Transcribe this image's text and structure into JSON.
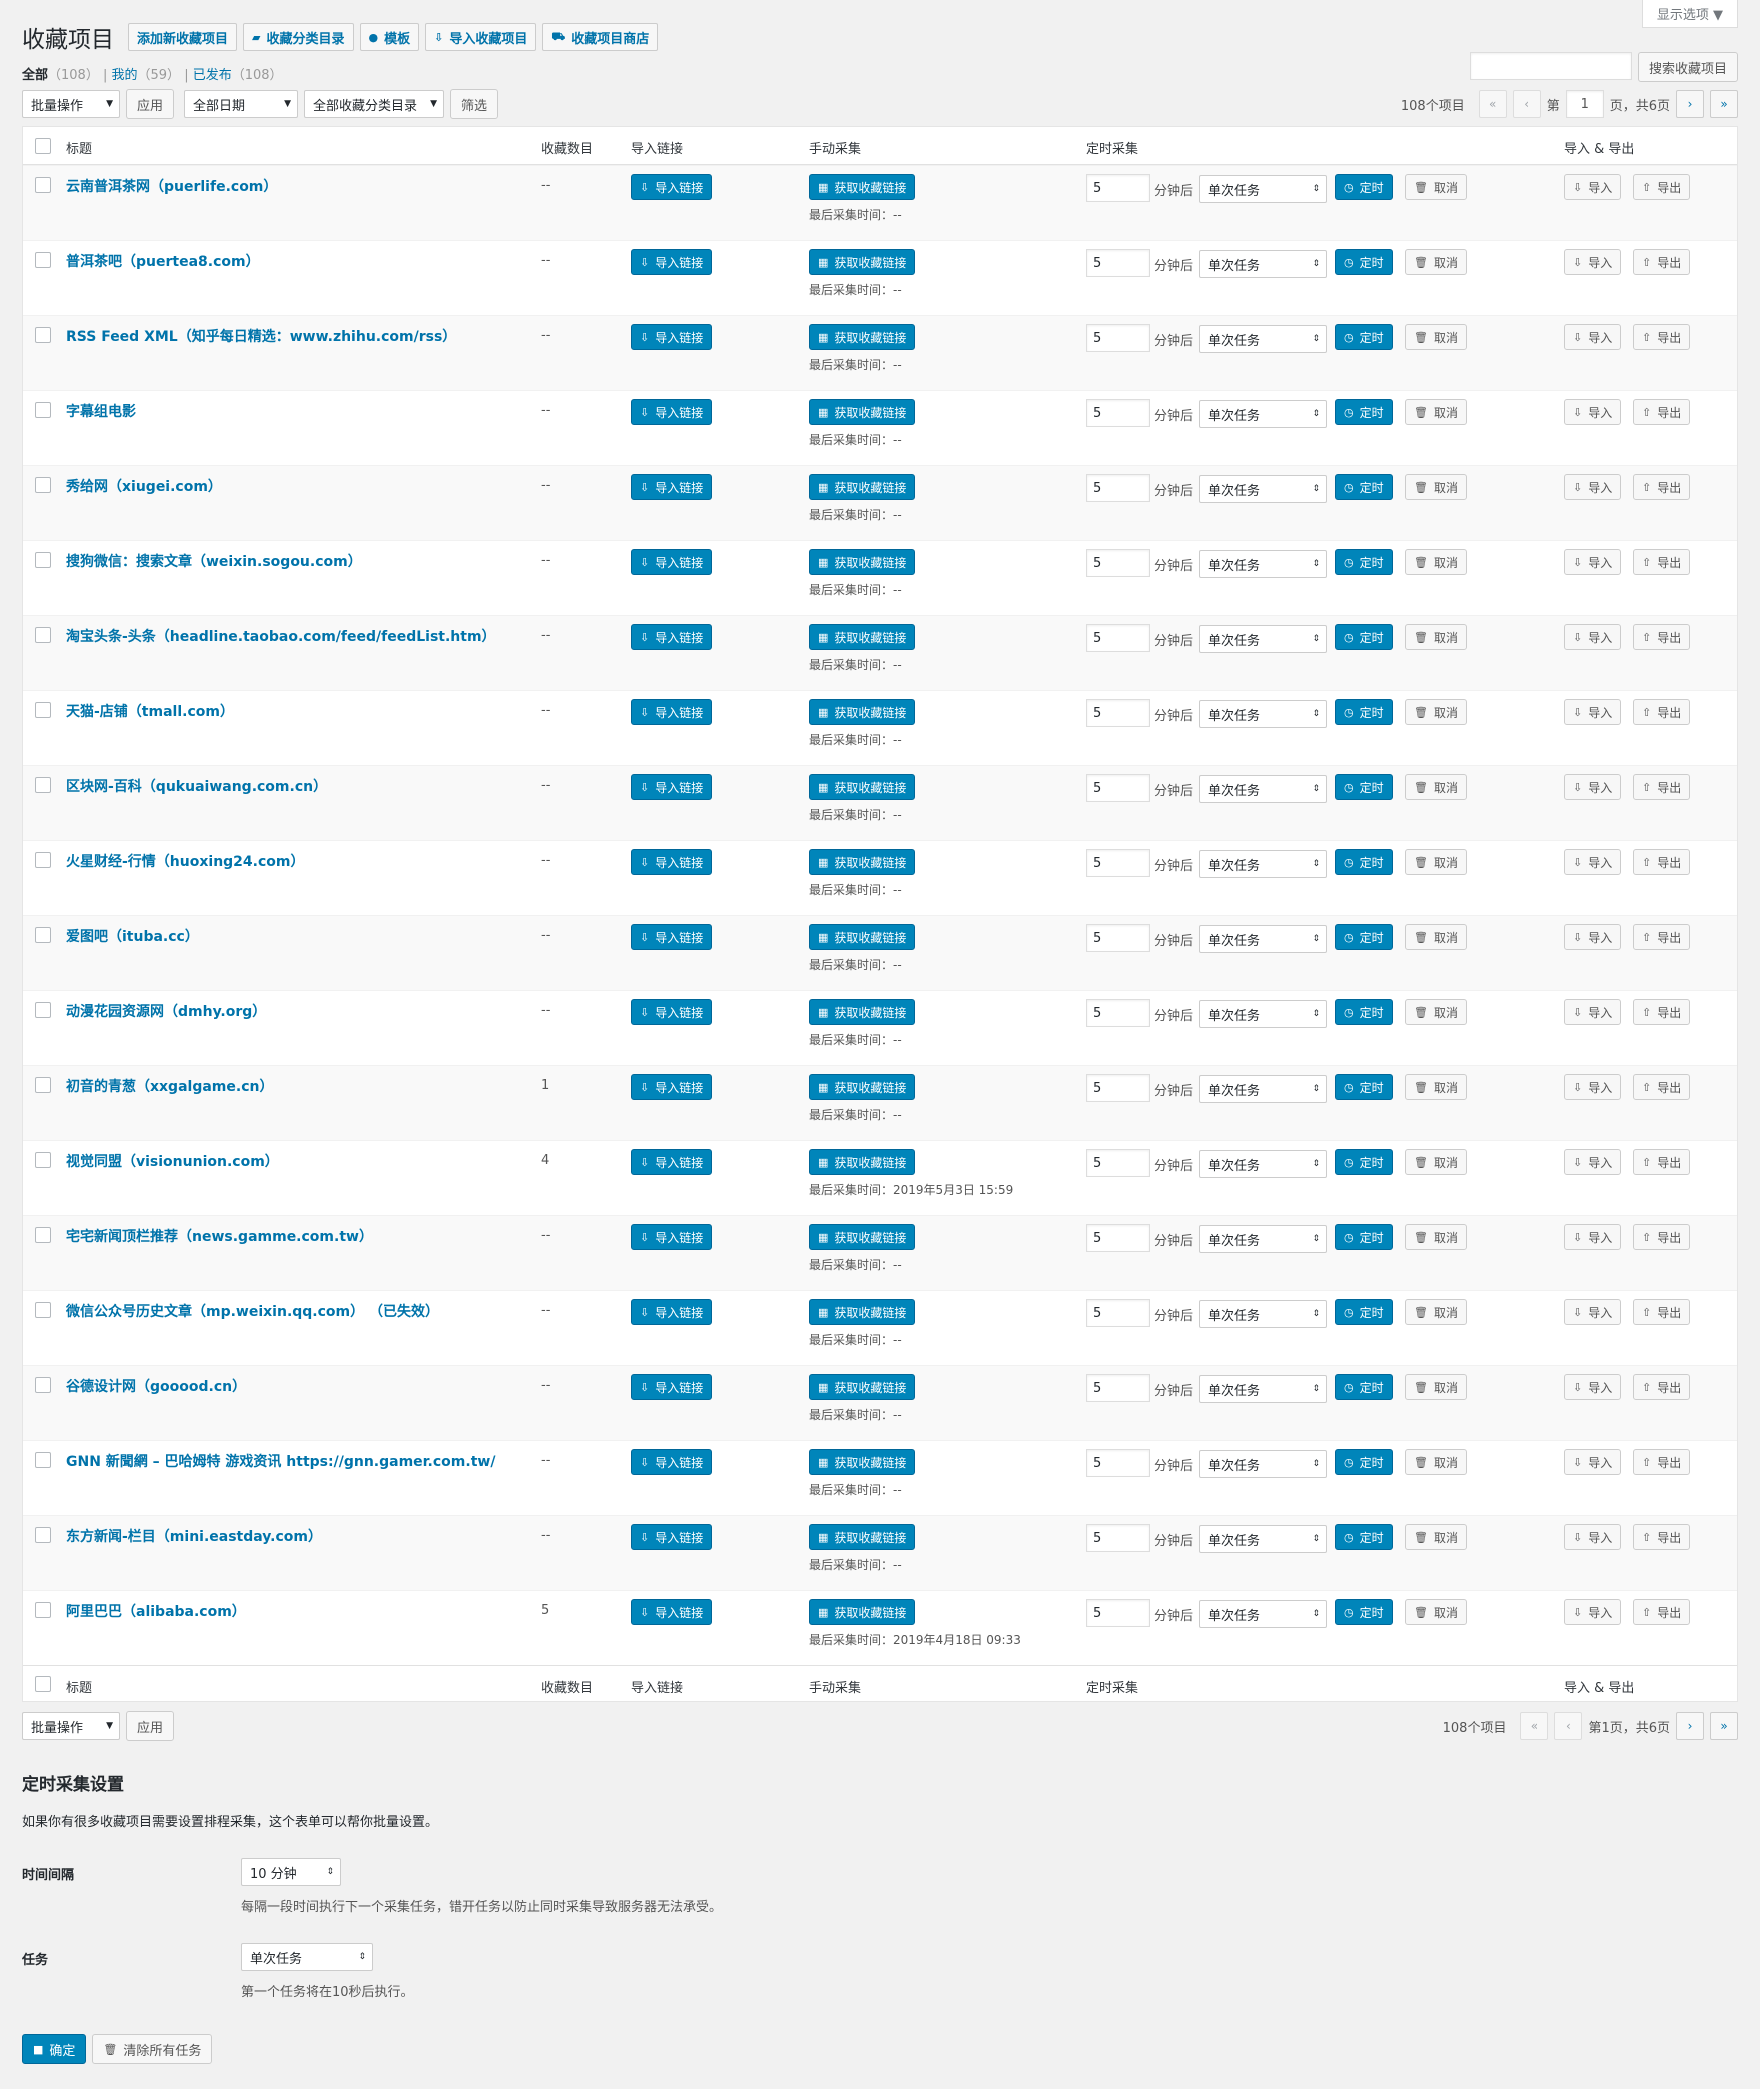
{
  "screen_options": "显示选项 ▼",
  "header": {
    "title": "收藏项目",
    "buttons": [
      {
        "icon": "",
        "label": "添加新收藏项目"
      },
      {
        "icon": "▰",
        "label": "收藏分类目录"
      },
      {
        "icon": "●",
        "label": "模板"
      },
      {
        "icon": "⇩",
        "label": "导入收藏项目"
      },
      {
        "icon": "⛟",
        "label": "收藏项目商店"
      }
    ]
  },
  "views": {
    "all": "全部",
    "all_count": "（108）",
    "mine": "我的",
    "mine_count": "（59）",
    "published": "已发布",
    "published_count": "（108）"
  },
  "search": {
    "value": "",
    "button": "搜索收藏项目"
  },
  "filters": {
    "bulk": "批量操作",
    "apply": "应用",
    "date": "全部日期",
    "category": "全部收藏分类目录",
    "filter": "筛选"
  },
  "pagination_top": {
    "total": "108个项目",
    "first": "«",
    "prev": "‹",
    "label_pre": "第",
    "current": "1",
    "label_post": "页，共6页",
    "next": "›",
    "last": "»"
  },
  "pagination_bottom": {
    "total": "108个项目",
    "first": "«",
    "prev": "‹",
    "label": "第1页，共6页",
    "next": "›",
    "last": "»"
  },
  "columns": {
    "title": "标题",
    "count": "收藏数目",
    "import": "导入链接",
    "manual": "手动采集",
    "schedule": "定时采集",
    "io": "导入 & 导出"
  },
  "row_labels": {
    "import_btn": "导入链接",
    "grab_btn": "获取收藏链接",
    "last_prefix": "最后采集时间：",
    "minutes_value": "5",
    "minutes_after": "分钟后",
    "task_option": "单次任务",
    "timer_btn": "定时",
    "cancel_btn": "取消",
    "io_import": "导入",
    "io_export": "导出"
  },
  "rows": [
    {
      "title": "云南普洱茶网（puerlife.com）",
      "count": "--",
      "last": "--"
    },
    {
      "title": "普洱茶吧（puertea8.com）",
      "count": "--",
      "last": "--"
    },
    {
      "title": "RSS Feed XML（知乎每日精选：www.zhihu.com/rss）",
      "count": "--",
      "last": "--"
    },
    {
      "title": "字幕组电影",
      "count": "--",
      "last": "--"
    },
    {
      "title": "秀给网（xiugei.com）",
      "count": "--",
      "last": "--"
    },
    {
      "title": "搜狗微信：搜索文章（weixin.sogou.com）",
      "count": "--",
      "last": "--"
    },
    {
      "title": "淘宝头条-头条（headline.taobao.com/feed/feedList.htm）",
      "count": "--",
      "last": "--"
    },
    {
      "title": "天猫-店铺（tmall.com）",
      "count": "--",
      "last": "--"
    },
    {
      "title": "区块网-百科（qukuaiwang.com.cn）",
      "count": "--",
      "last": "--"
    },
    {
      "title": "火星财经-行情（huoxing24.com）",
      "count": "--",
      "last": "--"
    },
    {
      "title": "爱图吧（ituba.cc）",
      "count": "--",
      "last": "--"
    },
    {
      "title": "动漫花园资源网（dmhy.org）",
      "count": "--",
      "last": "--"
    },
    {
      "title": "初音的青葱（xxgalgame.cn）",
      "count": "1",
      "last": "--"
    },
    {
      "title": "视觉同盟（visionunion.com）",
      "count": "4",
      "last": "2019年5月3日 15:59"
    },
    {
      "title": "宅宅新闻顶栏推荐（news.gamme.com.tw）",
      "count": "--",
      "last": "--"
    },
    {
      "title": "微信公众号历史文章（mp.weixin.qq.com） （已失效）",
      "count": "--",
      "last": "--"
    },
    {
      "title": "谷德设计网（gooood.cn）",
      "count": "--",
      "last": "--"
    },
    {
      "title": "GNN 新聞網 – 巴哈姆特 游戏资讯 https://gnn.gamer.com.tw/",
      "count": "--",
      "last": "--"
    },
    {
      "title": "东方新闻-栏目（mini.eastday.com）",
      "count": "--",
      "last": "--"
    },
    {
      "title": "阿里巴巴（alibaba.com）",
      "count": "5",
      "last": "2019年4月18日 09:33"
    }
  ],
  "schedule_settings": {
    "heading": "定时采集设置",
    "intro": "如果你有很多收藏项目需要设置排程采集，这个表单可以帮你批量设置。",
    "interval_label": "时间间隔",
    "interval_value": "10 分钟",
    "interval_desc": "每隔一段时间执行下一个采集任务，错开任务以防止同时采集导致服务器无法承受。",
    "task_label": "任务",
    "task_value": "单次任务",
    "task_desc": "第一个任务将在10秒后执行。",
    "confirm": "确定",
    "clear": "清除所有任务"
  }
}
